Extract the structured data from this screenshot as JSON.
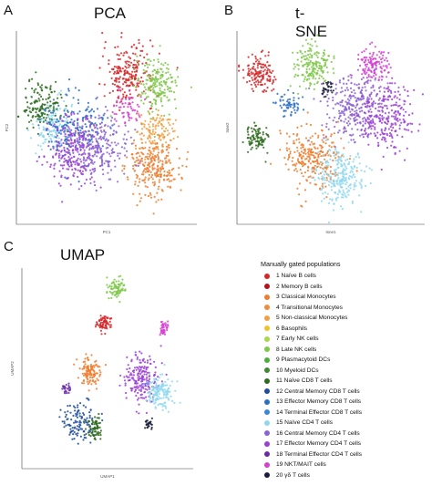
{
  "panels": {
    "a": {
      "letter": "A",
      "title": "PCA"
    },
    "b": {
      "letter": "B",
      "title": "t-SNE"
    },
    "c": {
      "letter": "C",
      "title": "UMAP"
    }
  },
  "legend": {
    "title": "Manually gated populations",
    "items": [
      {
        "label": "1 Naïve B cells",
        "color": "#d62728"
      },
      {
        "label": "2 Memory B cells",
        "color": "#b3151b"
      },
      {
        "label": "3 Classical Monocytes",
        "color": "#ee7d2e"
      },
      {
        "label": "4 Transitional Monocytes",
        "color": "#f08c3a"
      },
      {
        "label": "5 Non-classical Monocytes",
        "color": "#f0a040"
      },
      {
        "label": "6 Basophils",
        "color": "#f2c12e"
      },
      {
        "label": "7 Early NK cells",
        "color": "#a5d94a"
      },
      {
        "label": "8 Late NK cells",
        "color": "#7fc84a"
      },
      {
        "label": "9 Plasmacytoid DCs",
        "color": "#4caf3c"
      },
      {
        "label": "10 Myeloid DCs",
        "color": "#3d8b2f"
      },
      {
        "label": "11 Naïve CD8 T cells",
        "color": "#2e6b1f"
      },
      {
        "label": "12 Central Memory CD8 T cells",
        "color": "#1f4e9a"
      },
      {
        "label": "13 Effector Memory CD8 T cells",
        "color": "#2b6fc2"
      },
      {
        "label": "14 Terminal Effector CD8 T cells",
        "color": "#3b86d6"
      },
      {
        "label": "15 Naïve CD4 T cells",
        "color": "#8fd8ee"
      },
      {
        "label": "16 Central Memory CD4 T cells",
        "color": "#8a63d2"
      },
      {
        "label": "17 Effector Memory CD4 T cells",
        "color": "#9b3fd4"
      },
      {
        "label": "18 Terminal Effector CD4 T cells",
        "color": "#6a2aa8"
      },
      {
        "label": "19 NKT/MAIT cells",
        "color": "#d63fd0"
      },
      {
        "label": "20 γδ T cells",
        "color": "#1a1d3a"
      }
    ]
  },
  "chart_data": [
    {
      "type": "scatter",
      "title": "PCA",
      "xlabel": "PC1",
      "ylabel": "PC2",
      "clusters": [
        {
          "population": 1,
          "x": 0.62,
          "y": 0.78,
          "spread": 0.07,
          "n": 220
        },
        {
          "population": 8,
          "x": 0.78,
          "y": 0.72,
          "spread": 0.06,
          "n": 200
        },
        {
          "population": 3,
          "x": 0.76,
          "y": 0.3,
          "spread": 0.07,
          "n": 260
        },
        {
          "population": 5,
          "x": 0.77,
          "y": 0.48,
          "spread": 0.05,
          "n": 120
        },
        {
          "population": 15,
          "x": 0.2,
          "y": 0.5,
          "spread": 0.06,
          "n": 160
        },
        {
          "population": 11,
          "x": 0.14,
          "y": 0.62,
          "spread": 0.05,
          "n": 140
        },
        {
          "population": 13,
          "x": 0.32,
          "y": 0.5,
          "spread": 0.08,
          "n": 200
        },
        {
          "population": 17,
          "x": 0.32,
          "y": 0.38,
          "spread": 0.08,
          "n": 260
        },
        {
          "population": 16,
          "x": 0.48,
          "y": 0.4,
          "spread": 0.07,
          "n": 200
        },
        {
          "population": 19,
          "x": 0.62,
          "y": 0.6,
          "spread": 0.04,
          "n": 60
        }
      ]
    },
    {
      "type": "scatter",
      "title": "t-SNE",
      "xlabel": "tsne1",
      "ylabel": "tsne2",
      "clusters": [
        {
          "population": 1,
          "x": 0.12,
          "y": 0.78,
          "spread": 0.04,
          "n": 140
        },
        {
          "population": 8,
          "x": 0.4,
          "y": 0.82,
          "spread": 0.05,
          "n": 180
        },
        {
          "population": 19,
          "x": 0.72,
          "y": 0.82,
          "spread": 0.04,
          "n": 130
        },
        {
          "population": 16,
          "x": 0.62,
          "y": 0.6,
          "spread": 0.08,
          "n": 260
        },
        {
          "population": 17,
          "x": 0.78,
          "y": 0.55,
          "spread": 0.08,
          "n": 260
        },
        {
          "population": 13,
          "x": 0.28,
          "y": 0.62,
          "spread": 0.03,
          "n": 60
        },
        {
          "population": 3,
          "x": 0.4,
          "y": 0.35,
          "spread": 0.07,
          "n": 260
        },
        {
          "population": 15,
          "x": 0.55,
          "y": 0.25,
          "spread": 0.07,
          "n": 240
        },
        {
          "population": 11,
          "x": 0.1,
          "y": 0.45,
          "spread": 0.03,
          "n": 90
        },
        {
          "population": 20,
          "x": 0.48,
          "y": 0.7,
          "spread": 0.015,
          "n": 30
        }
      ]
    },
    {
      "type": "scatter",
      "title": "UMAP",
      "xlabel": "UMAP1",
      "ylabel": "UMAP2",
      "clusters": [
        {
          "population": 8,
          "x": 0.55,
          "y": 0.9,
          "spread": 0.025,
          "n": 80
        },
        {
          "population": 1,
          "x": 0.48,
          "y": 0.73,
          "spread": 0.02,
          "n": 70
        },
        {
          "population": 19,
          "x": 0.83,
          "y": 0.7,
          "spread": 0.015,
          "n": 40
        },
        {
          "population": 3,
          "x": 0.4,
          "y": 0.48,
          "spread": 0.03,
          "n": 120
        },
        {
          "population": 17,
          "x": 0.7,
          "y": 0.45,
          "spread": 0.05,
          "n": 200
        },
        {
          "population": 15,
          "x": 0.8,
          "y": 0.38,
          "spread": 0.04,
          "n": 150
        },
        {
          "population": 12,
          "x": 0.34,
          "y": 0.23,
          "spread": 0.05,
          "n": 120
        },
        {
          "population": 11,
          "x": 0.43,
          "y": 0.2,
          "spread": 0.025,
          "n": 70
        },
        {
          "population": 20,
          "x": 0.74,
          "y": 0.22,
          "spread": 0.012,
          "n": 25
        },
        {
          "population": 18,
          "x": 0.26,
          "y": 0.4,
          "spread": 0.012,
          "n": 25
        }
      ]
    }
  ]
}
